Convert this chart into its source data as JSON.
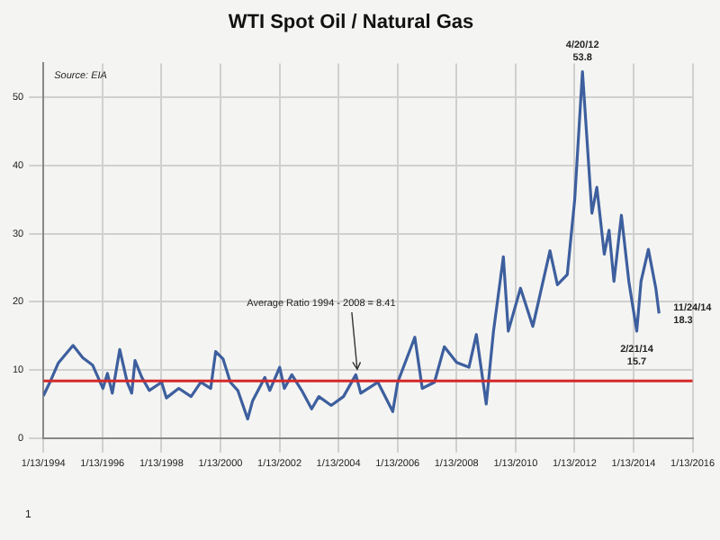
{
  "chart_data": {
    "type": "line",
    "title": "WTI Spot Oil / Natural Gas",
    "x": [
      "1994-01-13",
      "1994-04-15",
      "1994-07-15",
      "1995-01-15",
      "1995-05-15",
      "1995-09-15",
      "1996-01-20",
      "1996-03-15",
      "1996-05-15",
      "1996-08-15",
      "1996-11-15",
      "1997-01-10",
      "1997-02-20",
      "1997-05-15",
      "1997-08-15",
      "1998-01-15",
      "1998-03-15",
      "1998-08-15",
      "1999-01-15",
      "1999-05-15",
      "1999-09-15",
      "1999-11-15",
      "2000-02-15",
      "2000-05-15",
      "2000-08-15",
      "2000-12-15",
      "2001-02-15",
      "2001-07-15",
      "2001-09-15",
      "2002-01-15",
      "2002-03-15",
      "2002-06-15",
      "2002-10-15",
      "2003-02-15",
      "2003-05-15",
      "2003-10-15",
      "2004-03-15",
      "2004-08-15",
      "2004-10-15",
      "2005-05-15",
      "2005-11-15",
      "2006-01-15",
      "2006-08-15",
      "2006-11-15",
      "2007-04-15",
      "2007-08-15",
      "2008-01-15",
      "2008-06-15",
      "2008-09-15",
      "2009-01-15",
      "2009-04-15",
      "2009-08-15",
      "2009-10-15",
      "2010-03-15",
      "2010-08-15",
      "2011-03-15",
      "2011-06-15",
      "2011-10-15",
      "2012-01-15",
      "2012-04-20",
      "2012-08-15",
      "2012-10-15",
      "2013-01-15",
      "2013-03-15",
      "2013-05-15",
      "2013-08-15",
      "2013-11-15",
      "2014-02-21",
      "2014-04-15",
      "2014-07-15",
      "2014-10-15",
      "2014-11-24"
    ],
    "series": [
      {
        "color": "#3d5f9e",
        "values": [
          6.2,
          8.5,
          11,
          13.6,
          11.8,
          10.7,
          7.3,
          9.5,
          6.6,
          13,
          8.2,
          6.6,
          11.4,
          8.9,
          7,
          8.2,
          5.9,
          7.3,
          6.1,
          8.2,
          7.3,
          12.7,
          11.6,
          8.2,
          7,
          2.8,
          5.5,
          8.9,
          7,
          10.4,
          7.3,
          9.3,
          7,
          4.3,
          6.1,
          4.8,
          6.1,
          9.3,
          6.6,
          8.2,
          3.9,
          8.2,
          14.8,
          7.3,
          8.2,
          13.4,
          11.1,
          10.4,
          15.2,
          5,
          15.7,
          26.6,
          15.7,
          22,
          16.4,
          27.5,
          22.5,
          24,
          35,
          53.8,
          33,
          36.8,
          27,
          30.5,
          23,
          32.7,
          23,
          15.7,
          23,
          27.7,
          22,
          18.3
        ]
      }
    ],
    "xlim": [
      "1994-01-13",
      "2016-01-13"
    ],
    "xticks": [
      {
        "value": "1994-01-13",
        "label": "1/13/1994"
      },
      {
        "value": "1996-01-13",
        "label": "1/13/1996"
      },
      {
        "value": "1998-01-13",
        "label": "1/13/1998"
      },
      {
        "value": "2000-01-13",
        "label": "1/13/2000"
      },
      {
        "value": "2002-01-13",
        "label": "1/13/2002"
      },
      {
        "value": "2004-01-13",
        "label": "1/13/2004"
      },
      {
        "value": "2006-01-13",
        "label": "1/13/2006"
      },
      {
        "value": "2008-01-13",
        "label": "1/13/2008"
      },
      {
        "value": "2010-01-13",
        "label": "1/13/2010"
      },
      {
        "value": "2012-01-13",
        "label": "1/13/2012"
      },
      {
        "value": "2014-01-13",
        "label": "1/13/2014"
      },
      {
        "value": "2016-01-13",
        "label": "1/13/2016"
      }
    ],
    "ylim": [
      0,
      55
    ],
    "yticks": [
      0,
      10,
      20,
      30,
      40,
      50
    ],
    "grid": true,
    "legend": false,
    "marker": "none",
    "line_style": "solid",
    "ref_lines": [
      {
        "axis": "y",
        "value": 8.41,
        "label": "Average Ratio 1994 - 2008 = 8.41",
        "color": "#d42a2a"
      }
    ],
    "annotations": [
      "Source: EIA",
      {
        "text": "4/20/12\n53.8",
        "x": "2012-04-20",
        "y": 53.8
      },
      {
        "text": "2/21/14\n15.7",
        "x": "2014-02-21",
        "y": 15.7
      },
      {
        "text": "11/24/14\n18.3",
        "x": "2014-11-24",
        "y": 18.3
      },
      "1"
    ]
  }
}
